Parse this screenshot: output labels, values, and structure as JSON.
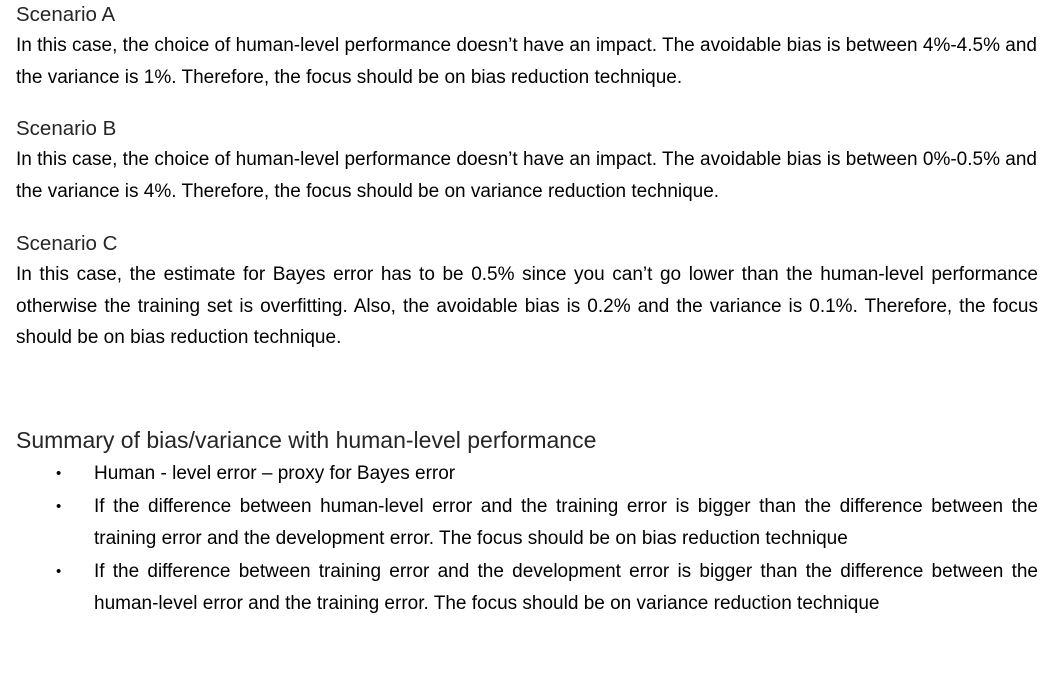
{
  "scenario_a": {
    "heading": "Scenario A",
    "text": "In this case, the choice of human-level performance doesn’t have an impact. The avoidable bias is between 4%-4.5% and the variance is 1%. Therefore, the focus should be on bias reduction technique."
  },
  "scenario_b": {
    "heading": "Scenario B",
    "text": "In this case, the choice of human-level performance doesn’t have an impact. The avoidable bias is between 0%-0.5% and the variance is 4%. Therefore, the focus should be on variance reduction technique."
  },
  "scenario_c": {
    "heading": "Scenario C",
    "text": "In this case, the estimate for Bayes error has to be 0.5% since you can’t go lower than the human-level performance otherwise the training set is overfitting. Also, the avoidable bias is 0.2% and the variance is 0.1%. Therefore, the focus should be on bias reduction technique."
  },
  "summary": {
    "heading": "Summary of bias/variance with human-level performance",
    "bullet_glyph": "•",
    "items": [
      "Human - level error – proxy for Bayes error",
      "If the difference between human-level error and the training error is bigger than the difference between the training error and the development error. The focus should be on bias reduction technique",
      "If the difference between training error and the development error is bigger than the difference between the human-level error and the training error. The focus should be on variance reduction technique"
    ]
  }
}
